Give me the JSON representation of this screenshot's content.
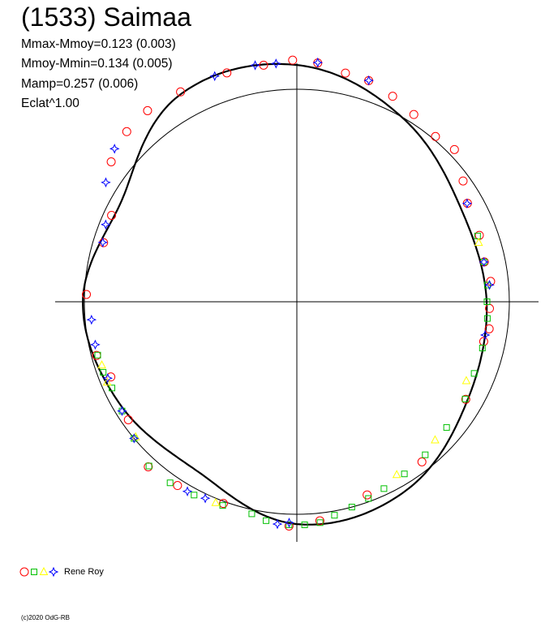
{
  "title": "(1533) Saimaa",
  "stats": [
    "Mmax-Mmoy=0.123 (0.003)",
    "Mmoy-Mmin=0.134 (0.005)",
    "Mamp=0.257 (0.006)",
    "Eclat^1.00"
  ],
  "legend": {
    "label": "Rene Roy"
  },
  "credit": "(c)2020 OdG-RB",
  "colors": {
    "axes": "#000000",
    "fit": "#000000",
    "reference_circle": "#000000",
    "red": "#ff0000",
    "green": "#00c000",
    "yellow": "#ffff00",
    "blue": "#0000ff"
  },
  "chart_data": {
    "type": "polar-lightcurve",
    "reference_circle_radius": 1.0,
    "fit_profile": [
      {
        "angle": 0,
        "r": 0.893
      },
      {
        "angle": 30,
        "r": 0.889
      },
      {
        "angle": 60,
        "r": 0.998
      },
      {
        "angle": 90,
        "r": 1.114
      },
      {
        "angle": 120,
        "r": 1.117
      },
      {
        "angle": 150,
        "r": 0.952
      },
      {
        "angle": 180,
        "r": 1.007
      },
      {
        "angle": 210,
        "r": 0.962
      },
      {
        "angle": 240,
        "r": 0.925
      },
      {
        "angle": 270,
        "r": 1.046
      },
      {
        "angle": 300,
        "r": 1.026
      },
      {
        "angle": 330,
        "r": 0.927
      }
    ],
    "series": [
      {
        "marker": "circle",
        "color": "red",
        "points": [
          [
            178,
            0.991
          ],
          [
            163,
            0.951
          ],
          [
            155,
            0.962
          ],
          [
            143,
            1.094
          ],
          [
            135,
            1.132
          ],
          [
            128,
            1.141
          ],
          [
            119,
            1.129
          ],
          [
            107,
            1.126
          ],
          [
            98,
            1.124
          ],
          [
            91,
            1.137
          ],
          [
            85,
            1.128
          ],
          [
            78,
            1.1
          ],
          [
            72,
            1.094
          ],
          [
            65,
            1.067
          ],
          [
            58,
            1.039
          ],
          [
            50,
            1.015
          ],
          [
            44,
            1.031
          ],
          [
            36,
            0.967
          ],
          [
            30,
            0.927
          ],
          [
            20,
            0.914
          ],
          [
            12,
            0.902
          ],
          [
            6,
            0.917
          ],
          [
            -2,
            0.907
          ],
          [
            -8,
            0.914
          ],
          [
            -12,
            0.899
          ],
          [
            -30,
            0.918
          ],
          [
            -52,
            0.956
          ],
          [
            -70,
            0.967
          ],
          [
            -84,
            1.036
          ],
          [
            -92,
            1.056
          ],
          [
            -110,
            1.01
          ],
          [
            -123,
            1.031
          ],
          [
            -132,
            1.045
          ],
          [
            -145,
            0.968
          ],
          [
            -158,
            0.944
          ],
          [
            -165,
            0.976
          ]
        ]
      },
      {
        "marker": "square",
        "color": "green",
        "points": [
          [
            -102,
            1.02
          ],
          [
            -98,
            1.04
          ],
          [
            -92,
            1.05
          ],
          [
            -88,
            1.05
          ],
          [
            -84,
            1.045
          ],
          [
            -80,
            1.02
          ],
          [
            -75,
            1.0
          ],
          [
            -70,
            0.985
          ],
          [
            -65,
            0.97
          ],
          [
            -58,
            0.955
          ],
          [
            -50,
            0.94
          ],
          [
            -40,
            0.92
          ],
          [
            -30,
            0.915
          ],
          [
            -22,
            0.9
          ],
          [
            -14,
            0.9
          ],
          [
            -5,
            0.9
          ],
          [
            0,
            0.895
          ],
          [
            5,
            0.9
          ],
          [
            12,
            0.9
          ],
          [
            20,
            0.905
          ],
          [
            -110,
            1.02
          ],
          [
            -118,
            1.03
          ],
          [
            -125,
            1.04
          ],
          [
            -132,
            1.04
          ],
          [
            -140,
            1.0
          ],
          [
            -148,
            0.97
          ],
          [
            -155,
            0.96
          ],
          [
            -160,
            0.97
          ],
          [
            -165,
            0.97
          ]
        ]
      },
      {
        "marker": "triangle",
        "color": "yellow",
        "points": [
          [
            18,
            0.9
          ],
          [
            -25,
            0.88
          ],
          [
            -45,
            0.92
          ],
          [
            -60,
            0.94
          ],
          [
            -112,
            1.02
          ],
          [
            -140,
            0.99
          ],
          [
            -157,
            0.97
          ],
          [
            -162,
            0.965
          ]
        ]
      },
      {
        "marker": "star",
        "color": "blue",
        "points": [
          [
            -140,
            1.0
          ],
          [
            -148,
            0.97
          ],
          [
            -158,
            0.96
          ],
          [
            -168,
            0.97
          ],
          [
            -175,
            0.97
          ],
          [
            -120,
            1.03
          ],
          [
            -115,
            1.02
          ],
          [
            -95,
            1.05
          ],
          [
            -92,
            1.04
          ],
          [
            100,
            1.13
          ],
          [
            95,
            1.125
          ],
          [
            85,
            1.13
          ],
          [
            110,
            1.13
          ],
          [
            140,
            1.12
          ],
          [
            148,
            1.06
          ],
          [
            158,
            0.97
          ],
          [
            163,
            0.955
          ],
          [
            72,
            1.095
          ],
          [
            30,
            0.925
          ],
          [
            12,
            0.9
          ],
          [
            5,
            0.91
          ],
          [
            -10,
            0.9
          ]
        ]
      }
    ]
  }
}
